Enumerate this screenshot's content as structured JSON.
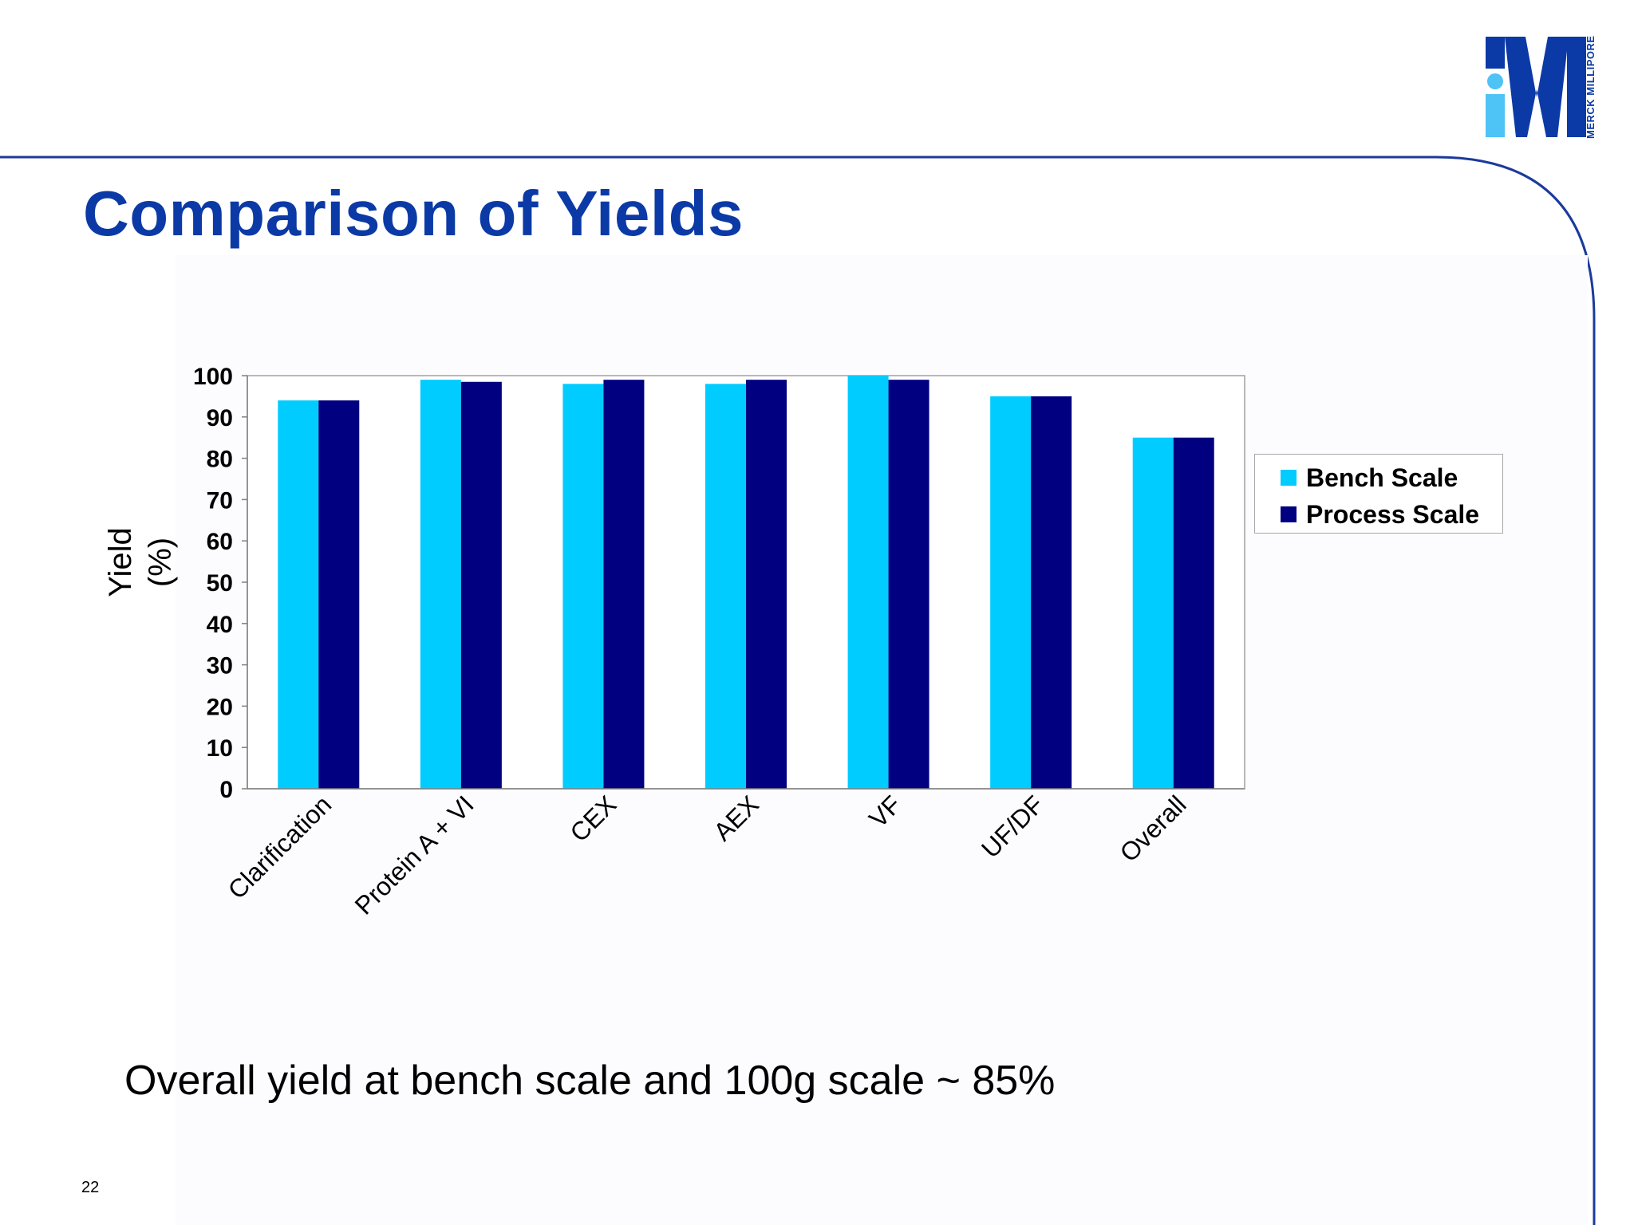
{
  "slide": {
    "title": "Comparison of Yields",
    "caption": "Overall yield at bench scale and 100g scale ~ 85%",
    "page_number": "22",
    "logo": {
      "text": "MERCK MILLIPORE",
      "mark": "M"
    },
    "colors": {
      "accent": "#0b3aa6",
      "frame_line": "#1b3a9c",
      "logo_light": "#4ec3f5"
    }
  },
  "chart_data": {
    "type": "bar",
    "title": "",
    "xlabel": "",
    "ylabel": "Yield (%)",
    "ylim": [
      0,
      100
    ],
    "yticks": [
      0,
      10,
      20,
      30,
      40,
      50,
      60,
      70,
      80,
      90,
      100
    ],
    "grid": false,
    "legend_position": "right",
    "categories": [
      "Clarification",
      "Protein A + VI",
      "CEX",
      "AEX",
      "VF",
      "UF/DF",
      "Overall"
    ],
    "series": [
      {
        "name": "Bench Scale",
        "color": "#00ccff",
        "values": [
          94,
          99,
          98,
          98,
          100,
          95,
          85
        ]
      },
      {
        "name": "Process Scale",
        "color": "#000080",
        "values": [
          94,
          98.5,
          99,
          99,
          99,
          95,
          85
        ]
      }
    ]
  }
}
